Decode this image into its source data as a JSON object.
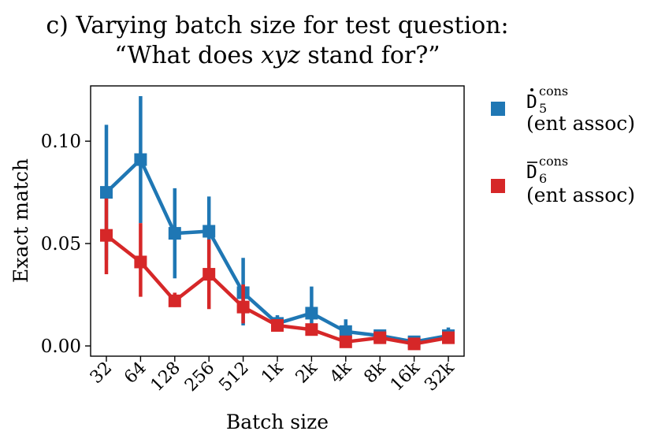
{
  "chart_data": {
    "type": "line",
    "title_line1": "c) Varying batch size for test question:",
    "title_line2_prefix": "“What does ",
    "title_line2_var": "xyz",
    "title_line2_suffix": " stand for?”",
    "xlabel": "Batch size",
    "ylabel": "Exact match",
    "categories": [
      "32",
      "64",
      "128",
      "256",
      "512",
      "1k",
      "2k",
      "4k",
      "8k",
      "16k",
      "32k"
    ],
    "ylim": [
      -0.005,
      0.127
    ],
    "yticks": [
      0.0,
      0.05,
      0.1
    ],
    "ytick_labels": [
      "0.00",
      "0.05",
      "0.10"
    ],
    "series": [
      {
        "name": "D5 cons (ent assoc)",
        "legend_main": "D",
        "legend_sub": "5",
        "legend_sup": "cons",
        "legend_accent": "dot",
        "legend_line2": "(ent assoc)",
        "color": "#1f77b4",
        "values": [
          0.075,
          0.091,
          0.055,
          0.056,
          0.026,
          0.011,
          0.016,
          0.007,
          0.005,
          0.002,
          0.005
        ],
        "err_low": [
          0.042,
          0.06,
          0.033,
          0.04,
          0.01,
          0.007,
          0.008,
          0.003,
          0.002,
          0.0,
          0.002
        ],
        "err_high": [
          0.108,
          0.122,
          0.077,
          0.073,
          0.043,
          0.015,
          0.029,
          0.013,
          0.008,
          0.005,
          0.009
        ]
      },
      {
        "name": "D6 cons (ent assoc)",
        "legend_main": "D",
        "legend_sub": "6",
        "legend_sup": "cons",
        "legend_accent": "bar",
        "legend_line2": "(ent assoc)",
        "color": "#d62728",
        "values": [
          0.054,
          0.041,
          0.022,
          0.035,
          0.019,
          0.01,
          0.008,
          0.002,
          0.004,
          0.001,
          0.004
        ],
        "err_low": [
          0.035,
          0.024,
          0.019,
          0.018,
          0.011,
          0.007,
          0.005,
          0.0,
          0.002,
          0.0,
          0.002
        ],
        "err_high": [
          0.072,
          0.06,
          0.026,
          0.052,
          0.03,
          0.013,
          0.011,
          0.004,
          0.006,
          0.003,
          0.007
        ]
      }
    ]
  }
}
